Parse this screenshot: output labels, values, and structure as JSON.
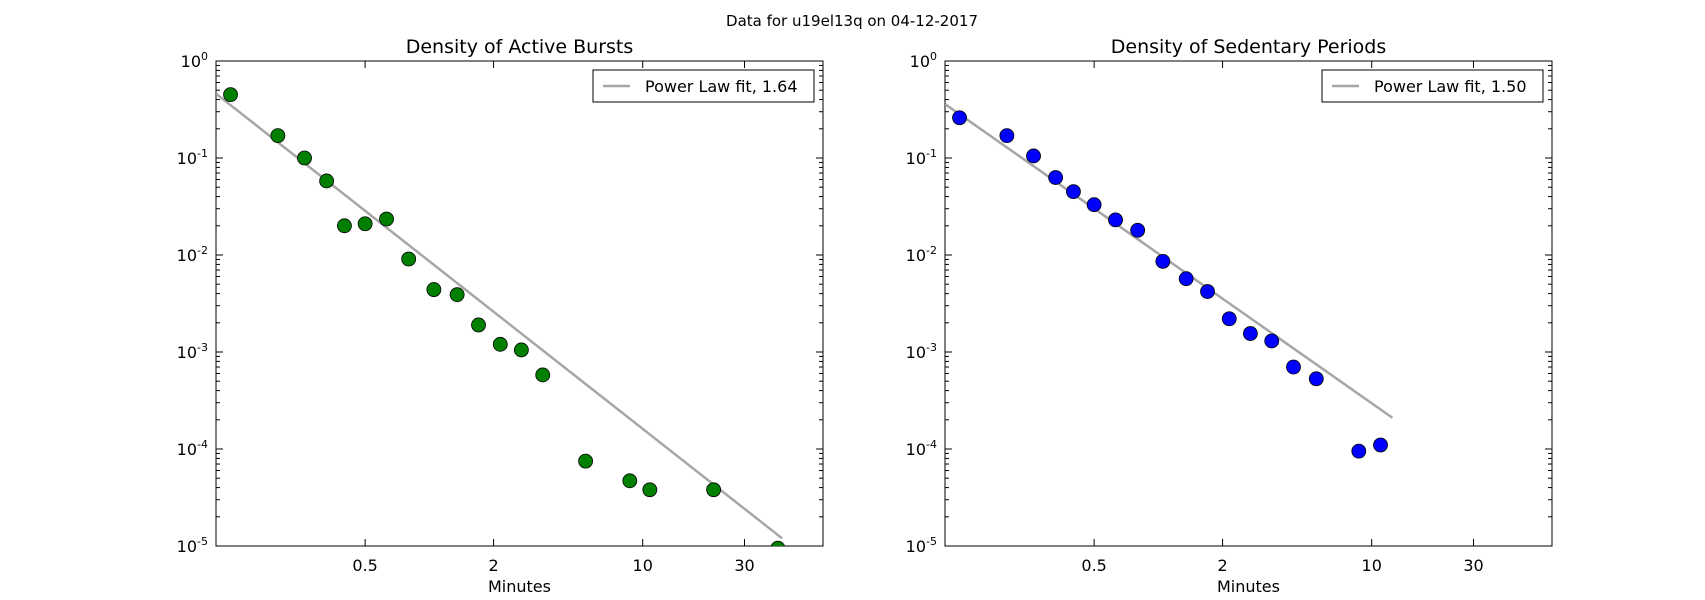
{
  "figure": {
    "suptitle": "Data for u19el13q on 04-12-2017"
  },
  "chart_data": [
    {
      "type": "scatter",
      "title": "Density of Active Bursts",
      "xlabel": "Minutes",
      "ylabel": "",
      "x_scale": "log",
      "y_scale": "log",
      "xlim": [
        0.1,
        70
      ],
      "ylim": [
        1e-05,
        1
      ],
      "xticks": [
        {
          "value": 0.5,
          "label": "0.5"
        },
        {
          "value": 2,
          "label": "2"
        },
        {
          "value": 10,
          "label": "10"
        },
        {
          "value": 30,
          "label": "30"
        }
      ],
      "yticks": [
        {
          "value": 1,
          "base": "10",
          "exp": "0"
        },
        {
          "value": 0.1,
          "base": "10",
          "exp": "-1"
        },
        {
          "value": 0.01,
          "base": "10",
          "exp": "-2"
        },
        {
          "value": 0.001,
          "base": "10",
          "exp": "-3"
        },
        {
          "value": 0.0001,
          "base": "10",
          "exp": "-4"
        },
        {
          "value": 1e-05,
          "base": "10",
          "exp": "-5"
        }
      ],
      "grid": false,
      "legend_position": "top-right",
      "point_color": "#007f00",
      "fit_color": "#a6a6a6",
      "series": [
        {
          "name": "",
          "points": [
            {
              "x": 0.117,
              "y": 0.45
            },
            {
              "x": 0.195,
              "y": 0.17
            },
            {
              "x": 0.26,
              "y": 0.1
            },
            {
              "x": 0.33,
              "y": 0.058
            },
            {
              "x": 0.4,
              "y": 0.02
            },
            {
              "x": 0.5,
              "y": 0.021
            },
            {
              "x": 0.63,
              "y": 0.0235
            },
            {
              "x": 0.8,
              "y": 0.0091
            },
            {
              "x": 1.05,
              "y": 0.0044
            },
            {
              "x": 1.35,
              "y": 0.0039
            },
            {
              "x": 1.7,
              "y": 0.0019
            },
            {
              "x": 2.15,
              "y": 0.0012
            },
            {
              "x": 2.7,
              "y": 0.00105
            },
            {
              "x": 3.4,
              "y": 0.00058
            },
            {
              "x": 5.4,
              "y": 7.5e-05
            },
            {
              "x": 8.7,
              "y": 4.7e-05
            },
            {
              "x": 10.8,
              "y": 3.8e-05
            },
            {
              "x": 21.5,
              "y": 3.8e-05
            },
            {
              "x": 43,
              "y": 9.5e-06
            }
          ]
        }
      ],
      "fit": {
        "name": "Power Law fit, 1.64",
        "exponent": 1.64,
        "x_start": 0.1,
        "x_end": 45,
        "y_start": 0.46,
        "y_end": 1.2e-05
      }
    },
    {
      "type": "scatter",
      "title": "Density of Sedentary Periods",
      "xlabel": "Minutes",
      "ylabel": "",
      "x_scale": "log",
      "y_scale": "log",
      "xlim": [
        0.1,
        70
      ],
      "ylim": [
        1e-05,
        1
      ],
      "xticks": [
        {
          "value": 0.5,
          "label": "0.5"
        },
        {
          "value": 2,
          "label": "2"
        },
        {
          "value": 10,
          "label": "10"
        },
        {
          "value": 30,
          "label": "30"
        }
      ],
      "yticks": [
        {
          "value": 1,
          "base": "10",
          "exp": "0"
        },
        {
          "value": 0.1,
          "base": "10",
          "exp": "-1"
        },
        {
          "value": 0.01,
          "base": "10",
          "exp": "-2"
        },
        {
          "value": 0.001,
          "base": "10",
          "exp": "-3"
        },
        {
          "value": 0.0001,
          "base": "10",
          "exp": "-4"
        },
        {
          "value": 1e-05,
          "base": "10",
          "exp": "-5"
        }
      ],
      "grid": false,
      "legend_position": "top-right",
      "point_color": "#0000ff",
      "fit_color": "#a6a6a6",
      "series": [
        {
          "name": "",
          "points": [
            {
              "x": 0.117,
              "y": 0.26
            },
            {
              "x": 0.195,
              "y": 0.17
            },
            {
              "x": 0.26,
              "y": 0.105
            },
            {
              "x": 0.33,
              "y": 0.063
            },
            {
              "x": 0.4,
              "y": 0.045
            },
            {
              "x": 0.5,
              "y": 0.033
            },
            {
              "x": 0.63,
              "y": 0.023
            },
            {
              "x": 0.8,
              "y": 0.018
            },
            {
              "x": 1.05,
              "y": 0.0086
            },
            {
              "x": 1.35,
              "y": 0.0057
            },
            {
              "x": 1.7,
              "y": 0.0042
            },
            {
              "x": 2.15,
              "y": 0.0022
            },
            {
              "x": 2.7,
              "y": 0.00155
            },
            {
              "x": 3.4,
              "y": 0.0013
            },
            {
              "x": 4.3,
              "y": 0.0007
            },
            {
              "x": 5.5,
              "y": 0.00053
            },
            {
              "x": 8.7,
              "y": 9.5e-05
            },
            {
              "x": 11,
              "y": 0.00011
            }
          ]
        }
      ],
      "fit": {
        "name": "Power Law fit, 1.50",
        "exponent": 1.5,
        "x_start": 0.1,
        "x_end": 12.5,
        "y_start": 0.36,
        "y_end": 0.00021
      }
    }
  ]
}
